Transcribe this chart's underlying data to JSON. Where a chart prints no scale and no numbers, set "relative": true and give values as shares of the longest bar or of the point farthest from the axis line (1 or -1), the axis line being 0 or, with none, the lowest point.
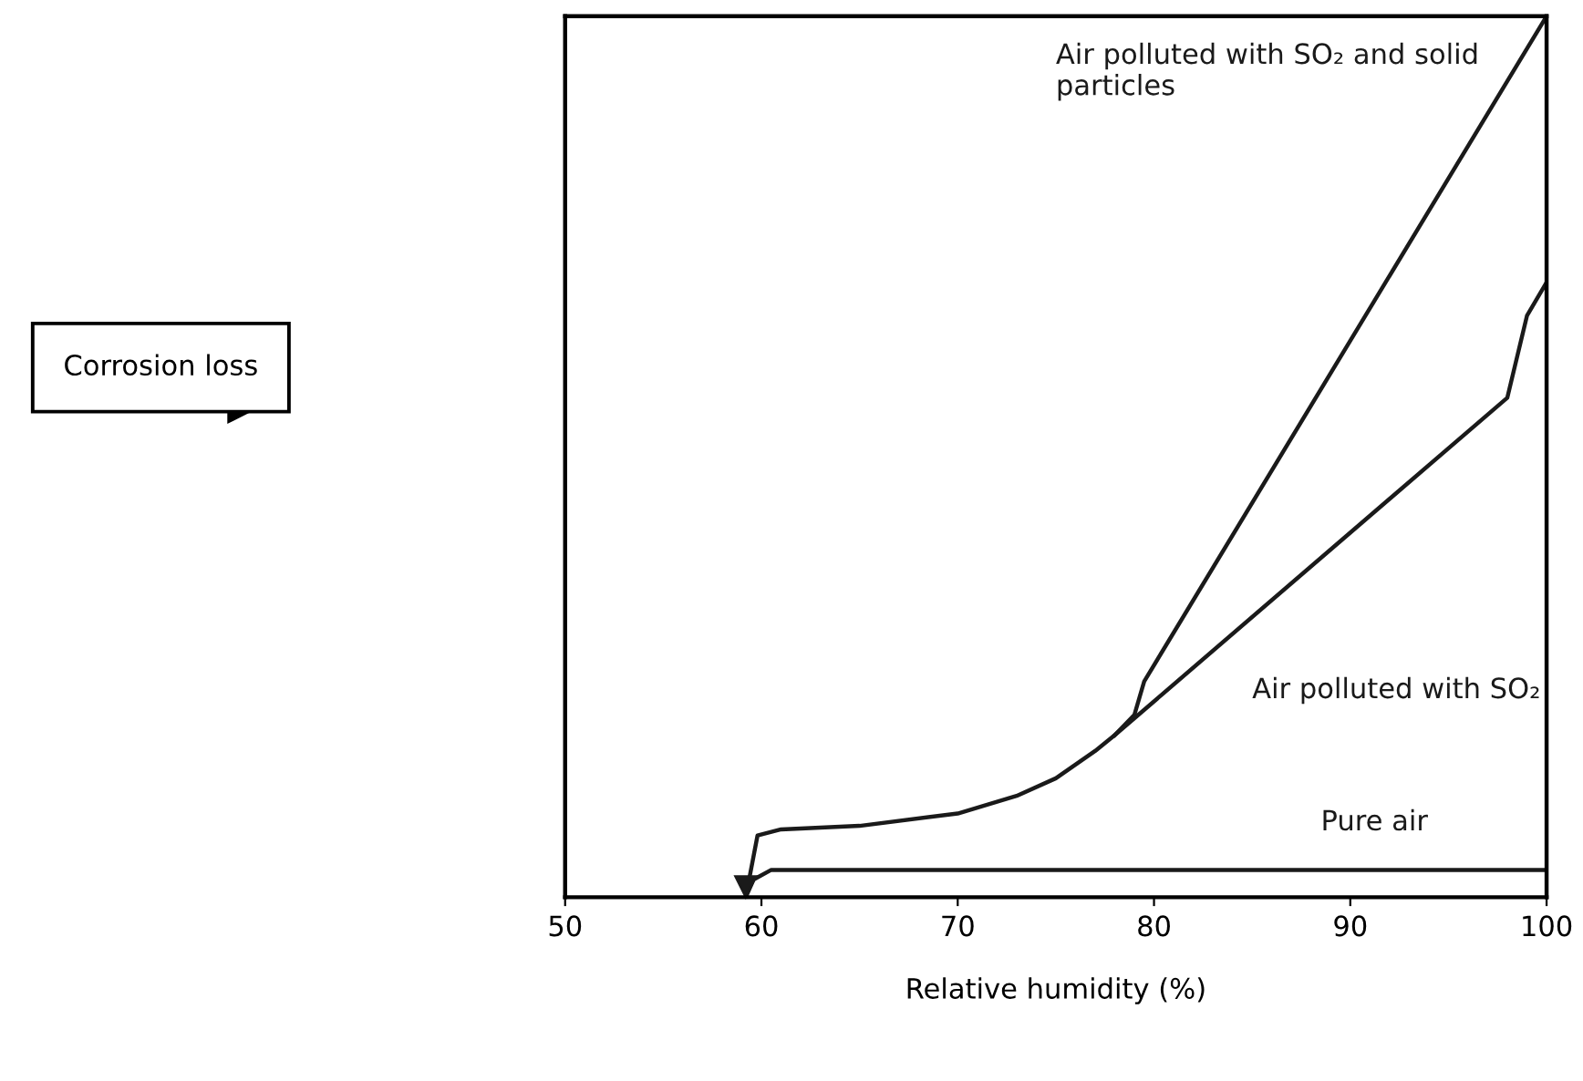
{
  "chart_data": {
    "type": "line",
    "relative": true,
    "xlabel": "Relative humidity (%)",
    "annotations": [
      "Corrosion loss"
    ],
    "xlim": [
      50,
      100
    ],
    "xticks": [
      50,
      60,
      70,
      80,
      90,
      100
    ],
    "grid": false,
    "legend": false,
    "marker": "none",
    "line_style": "solid",
    "tick_labels": "x",
    "series": [
      {
        "name": "Air polluted with SO₂ and solid particles",
        "color": "#1a1a1a",
        "x": [
          78,
          79,
          79.5,
          100
        ],
        "values": [
          0.184,
          0.207,
          0.245,
          1.0
        ]
      },
      {
        "name": "Air polluted with SO₂",
        "color": "#1a1a1a",
        "x": [
          59.2,
          59.8,
          61,
          65,
          70,
          73,
          75,
          77,
          78,
          98,
          99,
          100
        ],
        "values": [
          0.0,
          0.07,
          0.077,
          0.081,
          0.095,
          0.115,
          0.135,
          0.166,
          0.184,
          0.567,
          0.66,
          0.698
        ]
      },
      {
        "name": "Pure air",
        "color": "#1a1a1a",
        "x": [
          59.2,
          59.6,
          60.5,
          100
        ],
        "values": [
          0.0,
          0.02,
          0.031,
          0.031
        ]
      }
    ]
  }
}
